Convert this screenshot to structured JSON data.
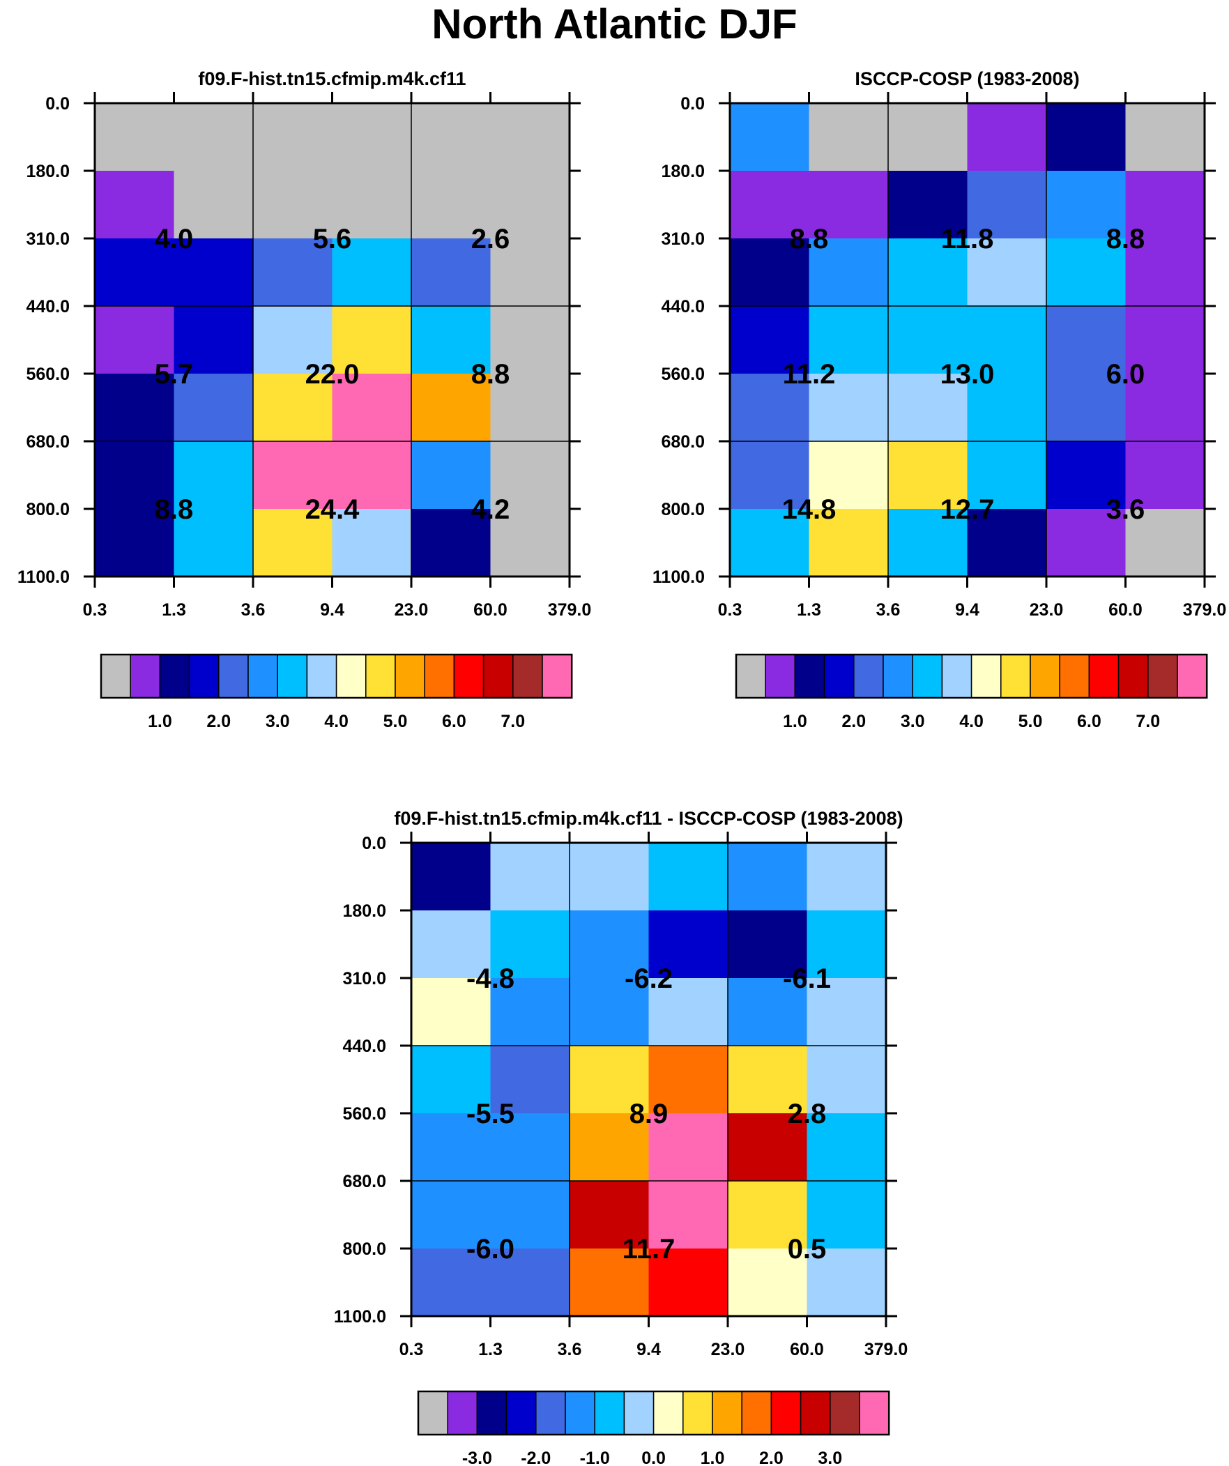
{
  "page": {
    "title": "North Atlantic DJF"
  },
  "palette": [
    "#c0c0c0",
    "#8a2be2",
    "#00008b",
    "#0000cd",
    "#4169e1",
    "#1e90ff",
    "#00bfff",
    "#a2d2ff",
    "#ffffc8",
    "#ffe135",
    "#ffa500",
    "#ff7000",
    "#ff0000",
    "#c80000",
    "#a52a2a",
    "#ff69b4"
  ],
  "chart_data": [
    {
      "type": "heatmap",
      "title": "f09.F-hist.tn15.cfmip.m4k.cf11",
      "xlabel": "",
      "ylabel": "",
      "x_ticks": [
        "0.3",
        "1.3",
        "3.6",
        "9.4",
        "23.0",
        "60.0",
        "379.0"
      ],
      "y_ticks": [
        "0.0",
        "180.0",
        "310.0",
        "440.0",
        "560.0",
        "680.0",
        "800.0",
        "1100.0"
      ],
      "cells": [
        [
          0,
          0,
          0,
          0,
          0,
          0
        ],
        [
          1,
          0,
          0,
          0,
          0,
          0
        ],
        [
          3,
          3,
          4,
          6,
          4,
          0
        ],
        [
          1,
          3,
          7,
          9,
          6,
          0
        ],
        [
          2,
          4,
          9,
          15,
          10,
          0
        ],
        [
          2,
          6,
          15,
          15,
          5,
          0
        ],
        [
          2,
          6,
          9,
          7,
          2,
          0
        ]
      ],
      "block_values": [
        [
          "4.0",
          "5.6",
          "2.6"
        ],
        [
          "5.7",
          "22.0",
          "8.8"
        ],
        [
          "8.8",
          "24.4",
          "4.2"
        ]
      ],
      "colorbar": {
        "labels": [
          "1.0",
          "2.0",
          "3.0",
          "4.0",
          "5.0",
          "6.0",
          "7.0"
        ]
      }
    },
    {
      "type": "heatmap",
      "title": "ISCCP-COSP (1983-2008)",
      "xlabel": "",
      "ylabel": "",
      "x_ticks": [
        "0.3",
        "1.3",
        "3.6",
        "9.4",
        "23.0",
        "60.0",
        "379.0"
      ],
      "y_ticks": [
        "0.0",
        "180.0",
        "310.0",
        "440.0",
        "560.0",
        "680.0",
        "800.0",
        "1100.0"
      ],
      "cells": [
        [
          5,
          0,
          0,
          1,
          2,
          0
        ],
        [
          1,
          1,
          2,
          4,
          5,
          1
        ],
        [
          2,
          5,
          6,
          7,
          6,
          1
        ],
        [
          3,
          6,
          6,
          6,
          4,
          1
        ],
        [
          4,
          7,
          7,
          6,
          4,
          1
        ],
        [
          4,
          8,
          9,
          6,
          3,
          1
        ],
        [
          6,
          9,
          6,
          2,
          1,
          0
        ]
      ],
      "block_values": [
        [
          "8.8",
          "11.8",
          "8.8"
        ],
        [
          "11.2",
          "13.0",
          "6.0"
        ],
        [
          "14.8",
          "12.7",
          "3.6"
        ]
      ],
      "colorbar": {
        "labels": [
          "1.0",
          "2.0",
          "3.0",
          "4.0",
          "5.0",
          "6.0",
          "7.0"
        ]
      }
    },
    {
      "type": "heatmap",
      "title": "f09.F-hist.tn15.cfmip.m4k.cf11 - ISCCP-COSP (1983-2008)",
      "xlabel": "",
      "ylabel": "",
      "x_ticks": [
        "0.3",
        "1.3",
        "3.6",
        "9.4",
        "23.0",
        "60.0",
        "379.0"
      ],
      "y_ticks": [
        "0.0",
        "180.0",
        "310.0",
        "440.0",
        "560.0",
        "680.0",
        "800.0",
        "1100.0"
      ],
      "cells": [
        [
          2,
          7,
          7,
          6,
          5,
          7
        ],
        [
          7,
          6,
          5,
          3,
          2,
          6
        ],
        [
          8,
          5,
          5,
          7,
          5,
          7
        ],
        [
          6,
          4,
          9,
          11,
          9,
          7
        ],
        [
          5,
          5,
          10,
          15,
          13,
          6
        ],
        [
          5,
          5,
          13,
          15,
          9,
          6
        ],
        [
          4,
          4,
          11,
          12,
          8,
          7
        ]
      ],
      "block_values": [
        [
          "-4.8",
          "-6.2",
          "-6.1"
        ],
        [
          "-5.5",
          "8.9",
          "2.8"
        ],
        [
          "-6.0",
          "11.7",
          "0.5"
        ]
      ],
      "colorbar": {
        "labels": [
          "-3.0",
          "-2.0",
          "-1.0",
          "0.0",
          "1.0",
          "2.0",
          "3.0"
        ]
      }
    }
  ]
}
